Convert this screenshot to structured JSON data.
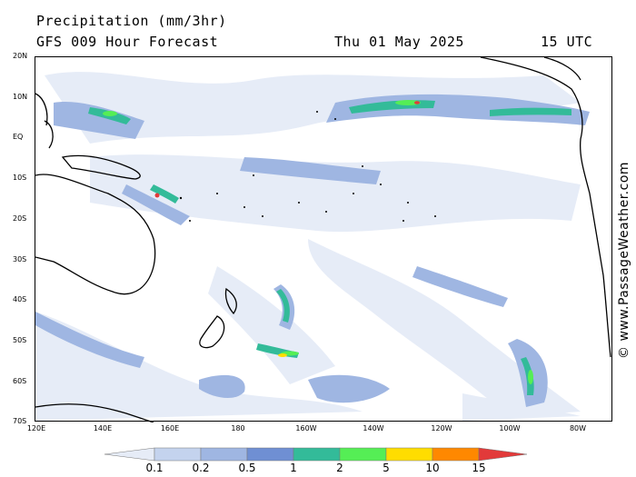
{
  "title": "Precipitation (mm/3hr)",
  "subtitle": "GFS 009 Hour Forecast",
  "date": "Thu 01 May 2025",
  "time": "15 UTC",
  "credit": "© www.PassageWeather.com",
  "latitude_labels": [
    "20N",
    "10N",
    "EQ",
    "10S",
    "20S",
    "30S",
    "40S",
    "50S",
    "60S",
    "70S"
  ],
  "longitude_labels": [
    "120E",
    "140E",
    "160E",
    "180",
    "160W",
    "140W",
    "120W",
    "100W",
    "80W"
  ],
  "legend": {
    "labels": [
      "0.1",
      "0.2",
      "0.5",
      "1",
      "2",
      "5",
      "10",
      "15"
    ],
    "colors": [
      "#e6ecf7",
      "#c4d3ee",
      "#9fb6e2",
      "#6f8fd3",
      "#33bb99",
      "#55ee55",
      "#ffdd00",
      "#ff8800",
      "#e23a3a"
    ]
  }
}
